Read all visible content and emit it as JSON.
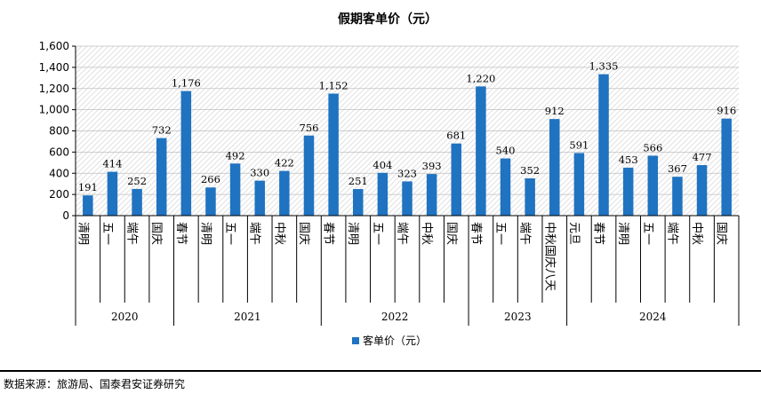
{
  "chart_data": {
    "type": "bar",
    "title": "假期客单价（元）",
    "categories": [
      "清明",
      "五一",
      "端午",
      "国庆",
      "春节",
      "清明",
      "五一",
      "端午",
      "中秋",
      "国庆",
      "春节",
      "清明",
      "五一",
      "端午",
      "中秋",
      "国庆",
      "春节",
      "五一",
      "端午",
      "中秋国庆八天",
      "元旦",
      "春节",
      "清明",
      "五一",
      "端午",
      "中秋",
      "国庆"
    ],
    "groups": [
      {
        "label": "2020",
        "count": 4
      },
      {
        "label": "2021",
        "count": 6
      },
      {
        "label": "2022",
        "count": 6
      },
      {
        "label": "2023",
        "count": 4
      },
      {
        "label": "2024",
        "count": 7
      }
    ],
    "series": [
      {
        "name": "客单价（元）",
        "values": [
          191,
          414,
          252,
          732,
          1176,
          266,
          492,
          330,
          422,
          756,
          1152,
          251,
          404,
          323,
          393,
          681,
          1220,
          540,
          352,
          912,
          591,
          1335,
          453,
          566,
          367,
          477,
          916
        ]
      }
    ],
    "value_labels": [
      "191",
      "414",
      "252",
      "732",
      "1,176",
      "266",
      "492",
      "330",
      "422",
      "756",
      "1,152",
      "251",
      "404",
      "323",
      "393",
      "681",
      "1,220",
      "540",
      "352",
      "912",
      "591",
      "1,335",
      "453",
      "566",
      "367",
      "477",
      "916"
    ],
    "ylim": [
      0,
      1600
    ],
    "y_ticks": [
      0,
      200,
      400,
      600,
      800,
      1000,
      1200,
      1400,
      1600
    ],
    "y_tick_labels": [
      "0",
      "200",
      "400",
      "600",
      "800",
      "1,000",
      "1,200",
      "1,400",
      "1,600"
    ],
    "grid": true,
    "legend_position": "bottom",
    "bar_color": "#1F73C1"
  },
  "source": "数据来源：旅游局、国泰君安证券研究"
}
